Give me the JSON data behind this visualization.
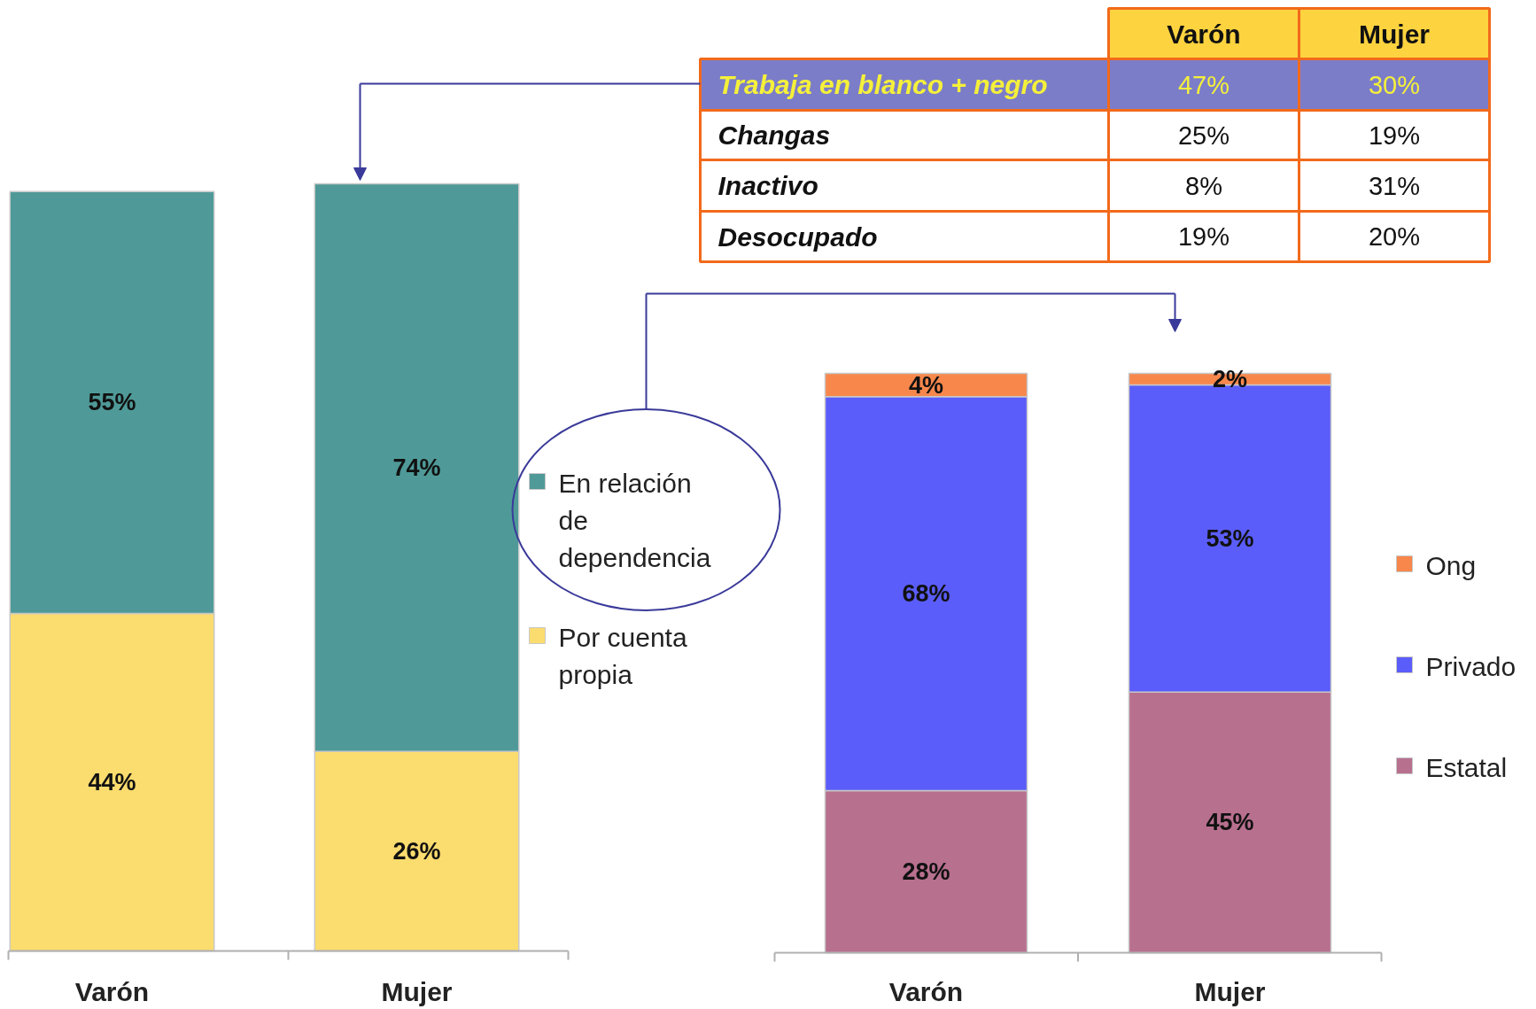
{
  "chart_data": [
    {
      "type": "bar",
      "stacked": true,
      "legend": "right",
      "tick_labels": "x",
      "categories": [
        "Varón",
        "Mujer"
      ],
      "series": [
        {
          "name": "Por cuenta propia",
          "color": "#fbdc6e",
          "values": [
            44,
            26
          ],
          "value_labels": [
            "44%",
            "26%"
          ]
        },
        {
          "name": "En relación de dependencia",
          "color": "#4f9a98",
          "values": [
            55,
            74
          ],
          "value_labels": [
            "55%",
            "74%"
          ]
        }
      ]
    },
    {
      "type": "other",
      "categories": [
        "Trabaja en blanco + negro",
        "Changas",
        "Inactivo",
        "Desocupado"
      ],
      "series": [
        {
          "name": "Varón",
          "values": [
            47,
            25,
            8,
            19
          ],
          "value_labels": [
            "47%",
            "25%",
            "8%",
            "19%"
          ]
        },
        {
          "name": "Mujer",
          "values": [
            30,
            19,
            31,
            20
          ],
          "value_labels": [
            "30%",
            "19%",
            "31%",
            "20%"
          ]
        }
      ]
    },
    {
      "type": "bar",
      "stacked": true,
      "legend": "right",
      "tick_labels": "x",
      "categories": [
        "Varón",
        "Mujer"
      ],
      "series": [
        {
          "name": "Estatal",
          "color": "#b8708f",
          "values": [
            28,
            45
          ],
          "value_labels": [
            "28%",
            "45%"
          ]
        },
        {
          "name": "Privado",
          "color": "#5b5dfa",
          "values": [
            68,
            53
          ],
          "value_labels": [
            "68%",
            "53%"
          ]
        },
        {
          "name": "Ong",
          "color": "#f8874c",
          "values": [
            4,
            2
          ],
          "value_labels": [
            "4%",
            "2%"
          ]
        }
      ]
    }
  ]
}
